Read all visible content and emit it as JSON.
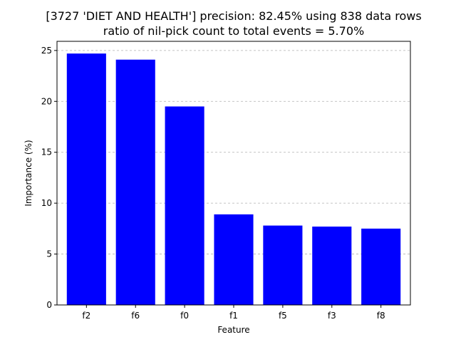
{
  "chart_data": {
    "type": "bar",
    "title": "[3727 'DIET AND HEALTH'] precision: 82.45% using 838 data rows",
    "subtitle": "ratio of nil-pick count to total events = 5.70%",
    "xlabel": "Feature",
    "ylabel": "Importance (%)",
    "categories": [
      "f2",
      "f6",
      "f0",
      "f1",
      "f5",
      "f3",
      "f8"
    ],
    "values": [
      24.7,
      24.1,
      19.5,
      8.9,
      7.8,
      7.7,
      7.5
    ],
    "ylim": [
      0,
      25.9
    ],
    "yticks": [
      0,
      5,
      10,
      15,
      20,
      25
    ],
    "grid": "y-dashed",
    "bar_color": "#0000ff",
    "grid_color": "#b0b0b0"
  }
}
